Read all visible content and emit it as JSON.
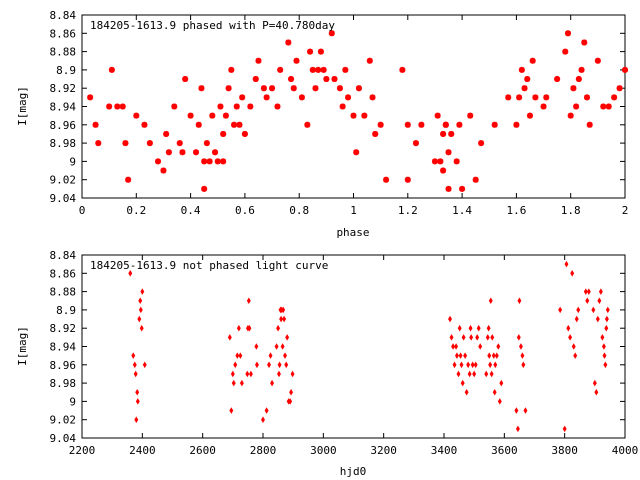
{
  "colors": {
    "points": "#ff0000",
    "axes": "#000000",
    "background": "#ffffff"
  },
  "chart_data": [
    {
      "type": "scatter",
      "title": "184205-1613.9 phased with P=40.780day",
      "xlabel": "phase",
      "ylabel": "I[mag]",
      "xlim": [
        0,
        2
      ],
      "ylim": [
        9.04,
        8.84
      ],
      "y_inverted": true,
      "grid": false,
      "legend": "none",
      "marker": "star",
      "x_ticks": [
        "0",
        "0.2",
        "0.4",
        "0.6",
        "0.8",
        "1",
        "1.2",
        "1.4",
        "1.6",
        "1.8",
        "2"
      ],
      "x_tick_values": [
        0,
        0.2,
        0.4,
        0.6,
        0.8,
        1,
        1.2,
        1.4,
        1.6,
        1.8,
        2
      ],
      "y_ticks": [
        "8.84",
        "8.86",
        "8.88",
        "8.9",
        "8.92",
        "8.94",
        "8.96",
        "8.98",
        "9",
        "9.02",
        "9.04"
      ],
      "y_tick_values": [
        8.84,
        8.86,
        8.88,
        8.9,
        8.92,
        8.94,
        8.96,
        8.98,
        9.0,
        9.02,
        9.04
      ],
      "series": [
        {
          "x": [
            0.03,
            0.05,
            0.06,
            0.1,
            0.11,
            0.13,
            0.15,
            0.16,
            0.17,
            0.2,
            0.23,
            0.25,
            0.28,
            0.3,
            0.31,
            0.32,
            0.34,
            0.36,
            0.37,
            0.38,
            0.4,
            0.42,
            0.43,
            0.44,
            0.45,
            0.45,
            0.46,
            0.47,
            0.48,
            0.49,
            0.5,
            0.51,
            0.52,
            0.52,
            0.53,
            0.54,
            0.55,
            0.56,
            0.57,
            0.58,
            0.59,
            0.6,
            0.62,
            0.64,
            0.65,
            0.67,
            0.68,
            0.7,
            0.72,
            0.73,
            0.76,
            0.77,
            0.78,
            0.79,
            0.81,
            0.83,
            0.84,
            0.85,
            0.86,
            0.87,
            0.88,
            0.89,
            0.9,
            0.92,
            0.93,
            0.95,
            0.96,
            0.97,
            0.98,
            1.0,
            1.01,
            1.02,
            1.04,
            1.06,
            1.07,
            1.08,
            1.1,
            1.12,
            1.18,
            1.2,
            1.2,
            1.23,
            1.25,
            1.3,
            1.31,
            1.32,
            1.33,
            1.33,
            1.34,
            1.34,
            1.35,
            1.35,
            1.36,
            1.38,
            1.39,
            1.4,
            1.43,
            1.45,
            1.47,
            1.52,
            1.57,
            1.6,
            1.61,
            1.62,
            1.63,
            1.64,
            1.65,
            1.66,
            1.67,
            1.7,
            1.71,
            1.75,
            1.78,
            1.79,
            1.8,
            1.81,
            1.82,
            1.83,
            1.84,
            1.85,
            1.86,
            1.87,
            1.9,
            1.92,
            1.94,
            1.96,
            1.98,
            2.0
          ],
          "y": [
            8.93,
            8.96,
            8.98,
            8.94,
            8.9,
            8.94,
            8.94,
            8.98,
            9.02,
            8.95,
            8.96,
            8.98,
            9.0,
            9.01,
            8.97,
            8.99,
            8.94,
            8.98,
            8.99,
            8.91,
            8.95,
            8.99,
            8.96,
            8.92,
            9.03,
            9.0,
            8.98,
            9.0,
            8.95,
            8.99,
            9.0,
            8.94,
            9.0,
            8.97,
            8.95,
            8.92,
            8.9,
            8.96,
            8.94,
            8.96,
            8.93,
            8.97,
            8.94,
            8.91,
            8.89,
            8.92,
            8.93,
            8.92,
            8.94,
            8.9,
            8.87,
            8.91,
            8.92,
            8.89,
            8.93,
            8.96,
            8.88,
            8.9,
            8.92,
            8.9,
            8.88,
            8.9,
            8.91,
            8.86,
            8.91,
            8.92,
            8.94,
            8.9,
            8.93,
            8.95,
            8.99,
            8.92,
            8.95,
            8.89,
            8.93,
            8.97,
            8.96,
            9.02,
            8.9,
            8.96,
            9.02,
            8.98,
            8.96,
            9.0,
            8.95,
            9.0,
            8.97,
            9.01,
            8.96,
            8.96,
            9.03,
            8.99,
            8.97,
            9.0,
            8.96,
            9.03,
            8.95,
            9.02,
            8.98,
            8.96,
            8.93,
            8.96,
            8.93,
            8.9,
            8.92,
            8.91,
            8.95,
            8.89,
            8.93,
            8.94,
            8.93,
            8.91,
            8.88,
            8.86,
            8.95,
            8.92,
            8.94,
            8.91,
            8.9,
            8.87,
            8.93,
            8.96,
            8.89,
            8.94,
            8.94,
            8.93,
            8.92,
            8.9
          ]
        }
      ]
    },
    {
      "type": "scatter",
      "title": "184205-1613.9 not phased light curve",
      "xlabel": "hjd0",
      "ylabel": "I[mag]",
      "xlim": [
        2200,
        4000
      ],
      "ylim": [
        9.04,
        8.84
      ],
      "y_inverted": true,
      "grid": false,
      "legend": "none",
      "marker": "diamond",
      "x_ticks": [
        "2200",
        "2400",
        "2600",
        "2800",
        "3000",
        "3200",
        "3400",
        "3600",
        "3800",
        "4000"
      ],
      "x_tick_values": [
        2200,
        2400,
        2600,
        2800,
        3000,
        3200,
        3400,
        3600,
        3800,
        4000
      ],
      "y_ticks": [
        "8.84",
        "8.86",
        "8.88",
        "8.9",
        "8.92",
        "8.94",
        "8.96",
        "8.98",
        "9",
        "9.02",
        "9.04"
      ],
      "y_tick_values": [
        8.84,
        8.86,
        8.88,
        8.9,
        8.92,
        8.94,
        8.96,
        8.98,
        9.0,
        9.02,
        9.04
      ],
      "series": [
        {
          "x": [
            2360,
            2370,
            2375,
            2378,
            2380,
            2383,
            2385,
            2390,
            2393,
            2395,
            2398,
            2400,
            2408,
            2690,
            2695,
            2700,
            2703,
            2708,
            2715,
            2720,
            2725,
            2730,
            2748,
            2750,
            2753,
            2755,
            2760,
            2778,
            2780,
            2800,
            2812,
            2820,
            2825,
            2830,
            2845,
            2850,
            2853,
            2855,
            2858,
            2860,
            2862,
            2865,
            2867,
            2870,
            2873,
            2877,
            2880,
            2885,
            2890,
            2893,
            2898,
            3420,
            3425,
            3430,
            3435,
            3440,
            3443,
            3448,
            3452,
            3455,
            3458,
            3462,
            3465,
            3470,
            3475,
            3480,
            3485,
            3488,
            3490,
            3495,
            3500,
            3505,
            3510,
            3515,
            3520,
            3540,
            3545,
            3548,
            3550,
            3553,
            3555,
            3558,
            3560,
            3565,
            3568,
            3570,
            3575,
            3580,
            3585,
            3590,
            3640,
            3645,
            3648,
            3650,
            3655,
            3660,
            3663,
            3670,
            3785,
            3800,
            3806,
            3812,
            3818,
            3825,
            3830,
            3835,
            3840,
            3845,
            3870,
            3875,
            3880,
            3895,
            3900,
            3905,
            3910,
            3915,
            3920,
            3925,
            3930,
            3932,
            3935,
            3938,
            3940,
            3943
          ],
          "y": [
            8.86,
            8.95,
            8.96,
            8.97,
            9.02,
            8.99,
            9.0,
            8.91,
            8.89,
            8.9,
            8.92,
            8.88,
            8.96,
            8.93,
            9.01,
            8.97,
            8.98,
            8.96,
            8.95,
            8.92,
            8.95,
            8.98,
            8.97,
            8.92,
            8.89,
            8.92,
            8.97,
            8.94,
            8.96,
            9.02,
            9.01,
            8.96,
            8.95,
            8.98,
            8.94,
            8.92,
            8.97,
            8.96,
            8.9,
            8.91,
            8.9,
            8.94,
            8.9,
            8.91,
            8.95,
            8.96,
            8.93,
            9.0,
            9.0,
            8.99,
            8.97,
            8.91,
            8.93,
            8.94,
            8.96,
            8.94,
            8.95,
            8.97,
            8.92,
            8.95,
            8.96,
            8.98,
            8.93,
            8.95,
            8.99,
            8.96,
            8.97,
            8.92,
            8.93,
            8.96,
            8.97,
            8.96,
            8.93,
            8.92,
            8.94,
            8.97,
            8.93,
            8.92,
            8.95,
            8.96,
            8.89,
            8.97,
            8.93,
            8.95,
            8.99,
            8.96,
            8.95,
            8.94,
            9.0,
            8.98,
            9.01,
            9.03,
            8.93,
            8.89,
            8.94,
            8.95,
            8.96,
            9.01,
            8.9,
            9.03,
            8.85,
            8.92,
            8.93,
            8.86,
            8.94,
            8.95,
            8.91,
            8.9,
            8.88,
            8.89,
            8.88,
            8.9,
            8.98,
            8.99,
            8.91,
            8.89,
            8.88,
            8.93,
            8.94,
            8.95,
            8.96,
            8.92,
            8.91,
            8.9
          ]
        }
      ]
    }
  ]
}
